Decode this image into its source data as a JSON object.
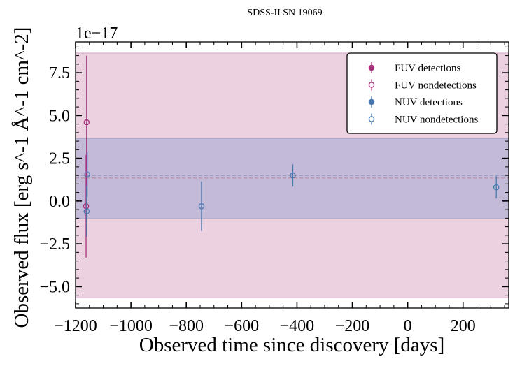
{
  "chart_data": {
    "type": "scatter",
    "title": "SDSS-II SN 19069",
    "xlabel": "Observed time since discovery [days]",
    "ylabel": "Observed flux [erg s^-1 Å^-1 cm^-2]",
    "y_offset_label": "1e−17",
    "xlim": [
      -1200,
      365
    ],
    "ylim": [
      -6.25,
      9.3
    ],
    "x_ticks": [
      -1200,
      -1000,
      -800,
      -600,
      -400,
      -200,
      0,
      200
    ],
    "x_tick_labels": [
      "−1200",
      "−1000",
      "−800",
      "−600",
      "−400",
      "−200",
      "0",
      "200"
    ],
    "y_ticks": [
      -5.0,
      -2.5,
      0.0,
      2.5,
      5.0,
      7.5
    ],
    "y_tick_labels": [
      "−5.0",
      "−2.5",
      "0.0",
      "2.5",
      "5.0",
      "7.5"
    ],
    "legend_position": "top-right",
    "legend": [
      "FUV detections",
      "FUV nondetections",
      "NUV detections",
      "NUV nondetections"
    ],
    "colors": {
      "fuv": "#a8307a",
      "nuv": "#4a78b0",
      "fuv_band": "#d9a3c4",
      "nuv_band": "#a8aad0"
    },
    "bands": [
      {
        "series": "FUV",
        "mean": 1.35,
        "low": -5.65,
        "high": 8.65
      },
      {
        "series": "NUV",
        "mean": 1.5,
        "low": -1.0,
        "high": 3.65
      }
    ],
    "series": [
      {
        "name": "FUV nondetections",
        "band": "FUV",
        "filled": false,
        "points": [
          {
            "x": -1160,
            "y": 4.6,
            "err": 3.9
          },
          {
            "x": -1162,
            "y": -0.3,
            "err": 3.0
          }
        ]
      },
      {
        "name": "NUV nondetections",
        "band": "NUV",
        "filled": false,
        "points": [
          {
            "x": -1158,
            "y": 1.55,
            "err": 1.3
          },
          {
            "x": -1160,
            "y": -0.6,
            "err": 1.5
          },
          {
            "x": -745,
            "y": -0.3,
            "err": 1.45
          },
          {
            "x": -415,
            "y": 1.5,
            "err": 0.65
          },
          {
            "x": 320,
            "y": 0.8,
            "err": 0.65
          }
        ]
      }
    ]
  }
}
